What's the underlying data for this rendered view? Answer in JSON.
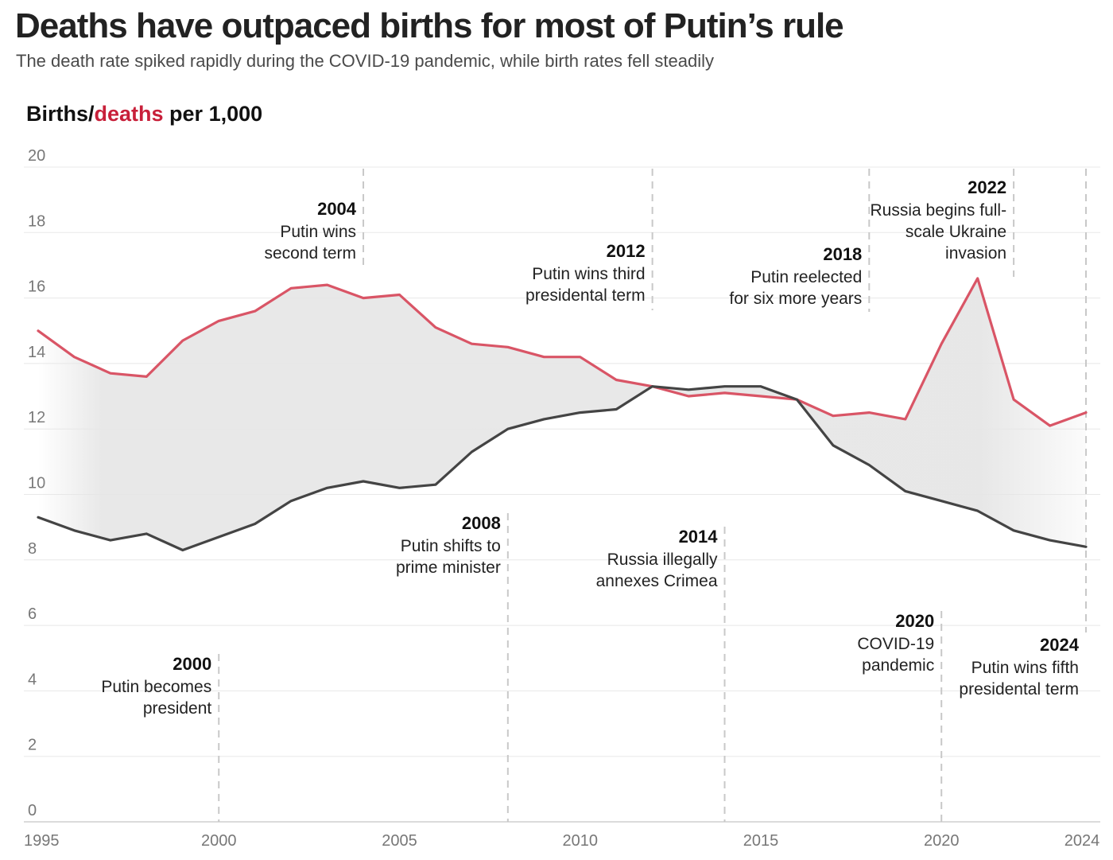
{
  "header": {
    "title": "Deaths have outpaced births for most of Putin’s rule",
    "subtitle": "The death rate spiked rapidly during the COVID-19 pandemic, while birth rates fell steadily",
    "ylabel_births": "Births/",
    "ylabel_deaths": "deaths",
    "ylabel_unit": " per 1,000"
  },
  "colors": {
    "deaths": "#d95566",
    "births": "#444444",
    "fill": "#e6e6e6",
    "grid": "#e8e8e8",
    "marker": "#c8c8c8"
  },
  "chart_data": {
    "type": "line",
    "title": "Deaths have outpaced births for most of Putin’s rule",
    "subtitle": "The death rate spiked rapidly during the COVID-19 pandemic, while birth rates fell steadily",
    "ylabel": "Births/deaths per 1,000",
    "xlim": [
      1995,
      2024
    ],
    "ylim": [
      0,
      20
    ],
    "xticks": [
      1995,
      2000,
      2005,
      2010,
      2015,
      2020,
      2024
    ],
    "yticks": [
      0,
      2,
      4,
      6,
      8,
      10,
      12,
      14,
      16,
      18,
      20
    ],
    "grid": true,
    "x": [
      1995,
      1996,
      1997,
      1998,
      1999,
      2000,
      2001,
      2002,
      2003,
      2004,
      2005,
      2006,
      2007,
      2008,
      2009,
      2010,
      2011,
      2012,
      2013,
      2014,
      2015,
      2016,
      2017,
      2018,
      2019,
      2020,
      2021,
      2022,
      2023,
      2024
    ],
    "series": [
      {
        "key": "deaths",
        "values": [
          15.0,
          14.2,
          13.7,
          13.6,
          14.7,
          15.3,
          15.6,
          16.3,
          16.4,
          16.0,
          16.1,
          15.1,
          14.6,
          14.5,
          14.2,
          14.2,
          13.5,
          13.3,
          13.0,
          13.1,
          13.0,
          12.9,
          12.4,
          12.5,
          12.3,
          14.6,
          16.6,
          12.9,
          12.1,
          12.5
        ]
      },
      {
        "key": "births",
        "values": [
          9.3,
          8.9,
          8.6,
          8.8,
          8.3,
          8.7,
          9.1,
          9.8,
          10.2,
          10.4,
          10.2,
          10.3,
          11.3,
          12.0,
          12.3,
          12.5,
          12.6,
          13.3,
          13.2,
          13.3,
          13.3,
          12.9,
          11.5,
          10.9,
          10.1,
          9.8,
          9.5,
          8.9,
          8.6,
          8.4
        ]
      }
    ],
    "annotations": [
      {
        "year": 2000,
        "label": "2000",
        "lines": [
          "Putin becomes",
          "president"
        ]
      },
      {
        "year": 2004,
        "label": "2004",
        "lines": [
          "Putin wins",
          "second term"
        ]
      },
      {
        "year": 2008,
        "label": "2008",
        "lines": [
          "Putin shifts to",
          "prime minister"
        ]
      },
      {
        "year": 2012,
        "label": "2012",
        "lines": [
          "Putin wins third",
          "presidental term"
        ]
      },
      {
        "year": 2014,
        "label": "2014",
        "lines": [
          "Russia illegally",
          "annexes Crimea"
        ]
      },
      {
        "year": 2018,
        "label": "2018",
        "lines": [
          "Putin reelected",
          "for six more years"
        ]
      },
      {
        "year": 2020,
        "label": "2020",
        "lines": [
          "COVID-19",
          "pandemic"
        ]
      },
      {
        "year": 2022,
        "label": "2022",
        "lines": [
          "Russia begins full-",
          "scale Ukraine",
          "invasion"
        ]
      },
      {
        "year": 2024,
        "label": "2024",
        "lines": [
          "Putin wins fifth",
          "presidental term"
        ]
      }
    ]
  }
}
